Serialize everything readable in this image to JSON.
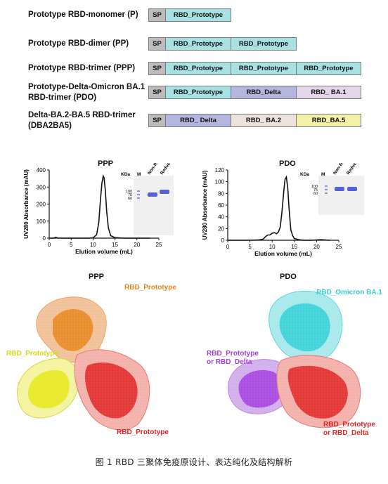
{
  "constructs": [
    {
      "label": "Prototype RBD-monomer (P)",
      "segments": [
        {
          "text": "SP",
          "kind": "sp"
        },
        {
          "text": "RBD_Prototype",
          "kind": "proto"
        }
      ]
    },
    {
      "label": "Prototype RBD-dimer (PP)",
      "segments": [
        {
          "text": "SP",
          "kind": "sp"
        },
        {
          "text": "RBD_Prototype",
          "kind": "proto"
        },
        {
          "text": "RBD_Prototype",
          "kind": "proto"
        }
      ]
    },
    {
      "label": "Prototype RBD-trimer (PPP)",
      "segments": [
        {
          "text": "SP",
          "kind": "sp"
        },
        {
          "text": "RBD_Prototype",
          "kind": "proto"
        },
        {
          "text": "RBD_Prototype",
          "kind": "proto"
        },
        {
          "text": "RBD_Prototype",
          "kind": "proto"
        }
      ]
    },
    {
      "label_line1": "Prototype-Delta-Omicron BA.1",
      "label_line2": "RBD-trimer (PDO)",
      "segments": [
        {
          "text": "SP",
          "kind": "sp"
        },
        {
          "text": "RBD_Prototype",
          "kind": "proto"
        },
        {
          "text": "RBD_Delta",
          "kind": "delta"
        },
        {
          "text": "RBD_ BA.1",
          "kind": "ba1"
        }
      ]
    },
    {
      "label_line1": "Delta-BA.2-BA.5 RBD-trimer",
      "label_line2": "(DBA2BA5)",
      "segments": [
        {
          "text": "SP",
          "kind": "sp"
        },
        {
          "text": "RBD_ Delta",
          "kind": "delta"
        },
        {
          "text": "RBD_ BA.2",
          "kind": "ba2"
        },
        {
          "text": "RBD_BA.5",
          "kind": "ba5"
        }
      ]
    }
  ],
  "sec_plots": {
    "ppp": {
      "title": "PPP",
      "ylabel": "UV280 Absorbance (mAU)",
      "xlabel": "Elution volume (mL)",
      "gel_kda": "KDa",
      "gel_m": "M",
      "gel_nonreduced": "Non-Reduced",
      "gel_reduced": "Reduced",
      "markers": [
        "100",
        "75",
        "60"
      ]
    },
    "pdo": {
      "title": "PDO",
      "ylabel": "UV280 Absorbance (mAU)",
      "xlabel": "Elution volume (mL)",
      "gel_kda": "KDa",
      "gel_m": "M",
      "gel_nonreduced": "Non-Reduced",
      "gel_reduced": "Reduced",
      "markers": [
        "100",
        "75",
        "60"
      ]
    }
  },
  "chart_data": [
    {
      "type": "line",
      "title": "PPP",
      "xlabel": "Elution volume (mL)",
      "ylabel": "UV280 Absorbance (mAU)",
      "xlim": [
        0,
        25
      ],
      "ylim": [
        0,
        400
      ],
      "xticks": [
        0,
        5,
        10,
        15,
        20,
        25
      ],
      "yticks": [
        0,
        100,
        200,
        300,
        400
      ],
      "series": [
        {
          "x": [
            0,
            1,
            1.5,
            2,
            5,
            9,
            10,
            10.8,
            11.3,
            11.7,
            12.0,
            12.3,
            12.5,
            12.8,
            13.1,
            13.5,
            14,
            15,
            17,
            20,
            23
          ],
          "values": [
            0,
            0,
            5,
            0,
            0,
            0,
            2,
            20,
            90,
            230,
            320,
            365,
            355,
            280,
            160,
            60,
            15,
            3,
            0,
            0,
            0
          ]
        }
      ]
    },
    {
      "type": "line",
      "title": "PDO",
      "xlabel": "Elution volume (mL)",
      "ylabel": "UV280 Absorbance (mAU)",
      "xlim": [
        0,
        25
      ],
      "ylim": [
        0,
        120
      ],
      "xticks": [
        0,
        5,
        10,
        15,
        20,
        25
      ],
      "yticks": [
        0,
        20,
        40,
        60,
        80,
        100,
        120
      ],
      "series": [
        {
          "x": [
            0,
            3,
            5,
            7,
            8,
            8.5,
            9,
            9.5,
            10,
            10.5,
            11,
            11.4,
            11.8,
            12.2,
            12.6,
            12.9,
            13.2,
            13.5,
            13.8,
            14.2,
            14.6,
            15,
            16,
            17,
            19,
            21,
            23
          ],
          "values": [
            0,
            0,
            0,
            0.5,
            2,
            6,
            9,
            9,
            12,
            13,
            11,
            14,
            22,
            48,
            82,
            104,
            108,
            90,
            55,
            18,
            8,
            3,
            1,
            0,
            0,
            1,
            0
          ]
        }
      ]
    }
  ],
  "structures": {
    "ppp_title": "PPP",
    "pdo_title": "PDO",
    "ppp_labels": {
      "top": "RBD_Prototype",
      "left": "RBD_Prototype",
      "bottom": "RBD_Prototype"
    },
    "pdo_labels": {
      "top": "RBD_Omicron BA.1",
      "left_line1": "RBD_Prototype",
      "left_line2": "or RBD_Delta",
      "bottom_line1": "RBD_Prototype",
      "bottom_line2": "or RBD_Delta"
    },
    "colors": {
      "orange": "#e8871e",
      "yellow": "#e6e619",
      "red": "#e02424",
      "cyan": "#33d0d6",
      "purple": "#a33fe0"
    }
  },
  "caption": "图 1 RBD 三聚体免疫原设计、表达纯化及结构解析"
}
